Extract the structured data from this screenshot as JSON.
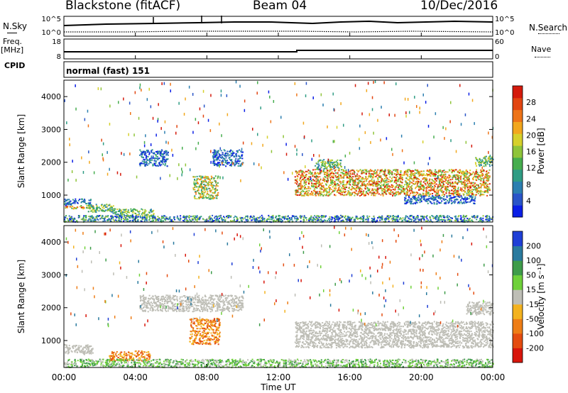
{
  "header": {
    "station": "Blackstone (fitACF)",
    "beam": "Beam 04",
    "date": "10/Dec/2016"
  },
  "top_panels": {
    "nsky_label": "N.Sky",
    "nsearch_label": "N.Search",
    "freq_label_1": "Freq.",
    "freq_label_2": "[MHz]",
    "nave_label": "Nave",
    "cpid_label": "CPID",
    "cpid_value": "normal (fast) 151",
    "noise_ticks": [
      "10^5",
      "10^0"
    ],
    "noise_ticks_right": [
      "10^5",
      "10^0"
    ],
    "freq_ticks": [
      "18",
      "8"
    ],
    "nave_ticks": [
      "60",
      "0"
    ]
  },
  "x_axis": {
    "title": "Time UT",
    "ticks": [
      "00:00",
      "04:00",
      "08:00",
      "12:00",
      "16:00",
      "20:00",
      "00:00"
    ]
  },
  "chart_data": [
    {
      "type": "heatmap",
      "title": "",
      "ylabel": "Slant Range [km]",
      "ylim": [
        180,
        4500
      ],
      "yticks": [
        "1000",
        "2000",
        "3000",
        "4000"
      ],
      "xlim_hours": [
        0,
        24
      ],
      "colorbar": {
        "label": "Power [dB]",
        "ticks": [
          "4",
          "8",
          "12",
          "16",
          "20",
          "24",
          "28"
        ],
        "colors": [
          "#0b1fe6",
          "#2a55c8",
          "#2c7fb0",
          "#2f9c84",
          "#46ad4e",
          "#8fc43a",
          "#d6d02b",
          "#f2a71d",
          "#ee7418",
          "#e24511",
          "#d41a0c"
        ]
      },
      "regions": [
        {
          "t": [
            0.0,
            1.6
          ],
          "r": [
            600,
            700
          ],
          "level": "high"
        },
        {
          "t": [
            0.0,
            1.5
          ],
          "r": [
            700,
            900
          ],
          "level": "low"
        },
        {
          "t": [
            1.3,
            2.8
          ],
          "r": [
            500,
            750
          ],
          "level": "mid"
        },
        {
          "t": [
            2.6,
            5.0
          ],
          "r": [
            350,
            600
          ],
          "level": "mid"
        },
        {
          "t": [
            0.0,
            24.0
          ],
          "r": [
            200,
            400
          ],
          "level": "low-mid"
        },
        {
          "t": [
            7.2,
            8.6
          ],
          "r": [
            900,
            1600
          ],
          "level": "mid-high"
        },
        {
          "t": [
            4.2,
            5.8
          ],
          "r": [
            1900,
            2400
          ],
          "level": "low"
        },
        {
          "t": [
            8.3,
            10.0
          ],
          "r": [
            1900,
            2400
          ],
          "level": "low"
        },
        {
          "t": [
            12.9,
            23.8
          ],
          "r": [
            1000,
            1800
          ],
          "level": "high"
        },
        {
          "t": [
            14.0,
            15.5
          ],
          "r": [
            1800,
            2100
          ],
          "level": "mid"
        },
        {
          "t": [
            23.0,
            24.0
          ],
          "r": [
            1900,
            2200
          ],
          "level": "mid"
        },
        {
          "t": [
            19.0,
            23.0
          ],
          "r": [
            750,
            1000
          ],
          "level": "low"
        }
      ]
    },
    {
      "type": "heatmap",
      "title": "",
      "ylabel": "Slant Range [km]",
      "ylim": [
        180,
        4500
      ],
      "yticks": [
        "1000",
        "2000",
        "3000",
        "4000"
      ],
      "xlim_hours": [
        0,
        24
      ],
      "colorbar": {
        "label": "Velocity [m s⁻¹]",
        "ticks": [
          "200",
          "100",
          "50",
          "15",
          "-15",
          "-50",
          "-100",
          "-200"
        ],
        "colors": [
          "#1f3fd6",
          "#2a7a9e",
          "#3e9c4a",
          "#6fd13a",
          "#bebeb6",
          "#f3b21f",
          "#ee7d16",
          "#e44c10",
          "#d8160b"
        ]
      },
      "regions": [
        {
          "t": [
            0.0,
            1.6
          ],
          "r": [
            600,
            900
          ],
          "v": "gray"
        },
        {
          "t": [
            2.5,
            4.8
          ],
          "r": [
            400,
            700
          ],
          "v": "orange"
        },
        {
          "t": [
            7.0,
            8.7
          ],
          "r": [
            900,
            1700
          ],
          "v": "orange"
        },
        {
          "t": [
            0.0,
            24.0
          ],
          "r": [
            200,
            450
          ],
          "v": "green"
        },
        {
          "t": [
            12.9,
            24.0
          ],
          "r": [
            800,
            1600
          ],
          "v": "gray"
        },
        {
          "t": [
            22.5,
            24.0
          ],
          "r": [
            1800,
            2200
          ],
          "v": "gray"
        },
        {
          "t": [
            4.2,
            10.0
          ],
          "r": [
            1900,
            2400
          ],
          "v": "gray"
        }
      ]
    }
  ]
}
